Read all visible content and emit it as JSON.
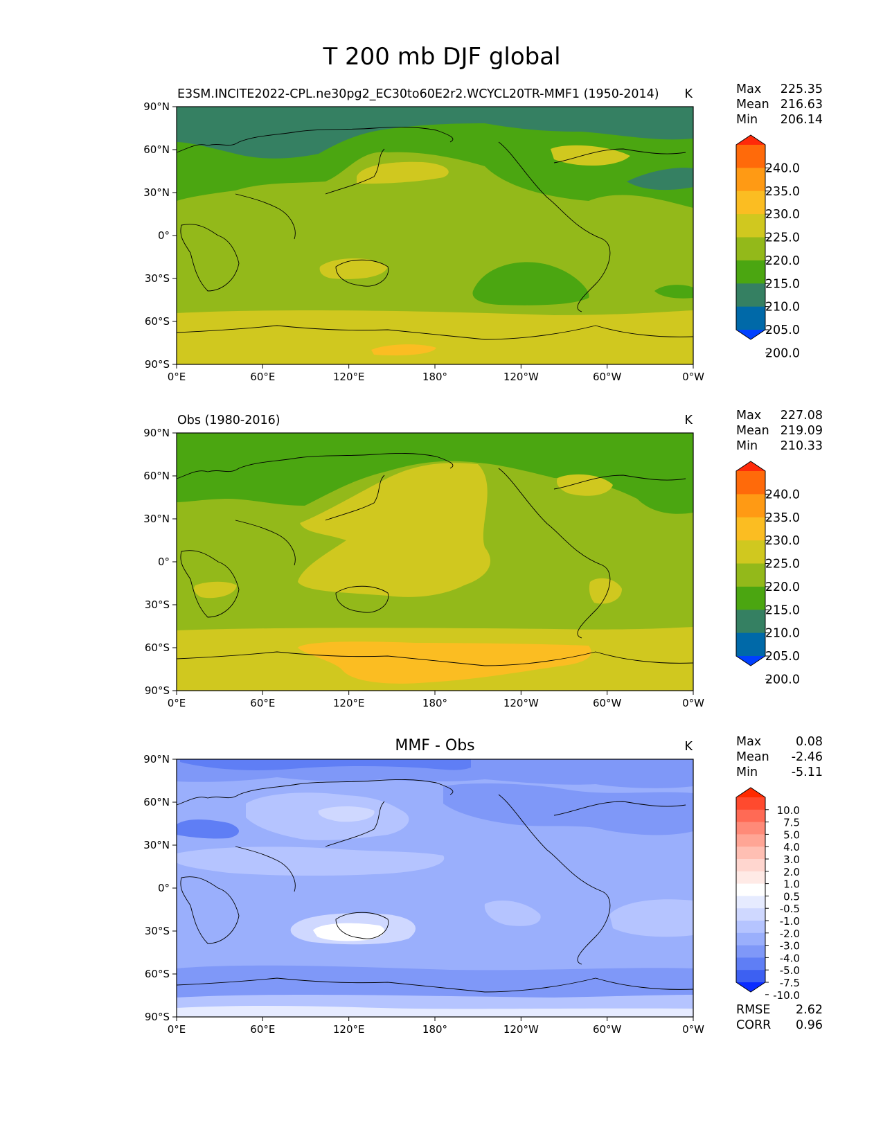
{
  "figure_title": "T 200 mb DJF global",
  "x_ticks": [
    "0°E",
    "60°E",
    "120°E",
    "180°",
    "120°W",
    "60°W",
    "0°W"
  ],
  "y_ticks": [
    "90°N",
    "60°N",
    "30°N",
    "0°",
    "30°S",
    "60°S",
    "90°S"
  ],
  "panels": [
    {
      "id": "test",
      "title_left": "E3SM.INCITE2022-CPL.ne30pg2_EC30to60E2r2.WCYCL20TR-MMF1 (1950-2014)",
      "title_center": "",
      "units": "K",
      "stats": {
        "max_label": "Max",
        "max": "225.35",
        "mean_label": "Mean",
        "mean": "216.63",
        "min_label": "Min",
        "min": "206.14"
      },
      "colorbar_levels": [
        "240.0",
        "235.0",
        "230.0",
        "225.0",
        "220.0",
        "215.0",
        "210.0",
        "205.0",
        "200.0"
      ],
      "colorbar_colors": [
        "#ff2a0a",
        "#ff6a0a",
        "#ff9a14",
        "#fbbd22",
        "#d0c81f",
        "#93b91a",
        "#4ba611",
        "#358062",
        "#0069a8",
        "#0040ff"
      ]
    },
    {
      "id": "reference",
      "title_left": "Obs (1980-2016)",
      "title_center": "",
      "units": "K",
      "stats": {
        "max_label": "Max",
        "max": "227.08",
        "mean_label": "Mean",
        "mean": "219.09",
        "min_label": "Min",
        "min": "210.33"
      },
      "colorbar_levels": [
        "240.0",
        "235.0",
        "230.0",
        "225.0",
        "220.0",
        "215.0",
        "210.0",
        "205.0",
        "200.0"
      ],
      "colorbar_colors": [
        "#ff2a0a",
        "#ff6a0a",
        "#ff9a14",
        "#fbbd22",
        "#d0c81f",
        "#93b91a",
        "#4ba611",
        "#358062",
        "#0069a8",
        "#0040ff"
      ]
    },
    {
      "id": "difference",
      "title_left": "",
      "title_center": "MMF - Obs",
      "units": "K",
      "stats": {
        "max_label": "Max",
        "max": "0.08",
        "mean_label": "Mean",
        "mean": "-2.46",
        "min_label": "Min",
        "min": "-5.11"
      },
      "colorbar_levels": [
        "10.0",
        "7.5",
        "5.0",
        "4.0",
        "3.0",
        "2.0",
        "1.0",
        "0.5",
        "-0.5",
        "-1.0",
        "-2.0",
        "-3.0",
        "-4.0",
        "-5.0",
        "-7.5",
        "-10.0"
      ],
      "colorbar_colors": [
        "#ff2a00",
        "#ff4a2e",
        "#ff6a55",
        "#ff8a78",
        "#ffa595",
        "#ffbfb3",
        "#ffd6cf",
        "#ffeae6",
        "#ffffff",
        "#e6ebff",
        "#cfd8ff",
        "#b5c4ff",
        "#9aaffc",
        "#7f98f8",
        "#5f7ef5",
        "#3d60f2",
        "#0a2bff"
      ],
      "error_stats": {
        "rmse_label": "RMSE",
        "rmse": "2.62",
        "corr_label": "CORR",
        "corr": "0.96"
      }
    }
  ],
  "map_fill_colors": {
    "test": {
      "base": "#93b91a",
      "cold": "#4ba611",
      "colder": "#358062",
      "warm": "#d0c81f",
      "warmer": "#fbbd22"
    },
    "reference": {
      "base": "#93b91a",
      "cold": "#4ba611",
      "warm": "#d0c81f",
      "warmer": "#fbbd22"
    },
    "difference": {
      "base": "#9aaffc",
      "light": "#b5c4ff",
      "lighter": "#cfd8ff",
      "white": "#ffffff",
      "dark": "#7f98f8",
      "darker": "#5f7ef5"
    }
  }
}
